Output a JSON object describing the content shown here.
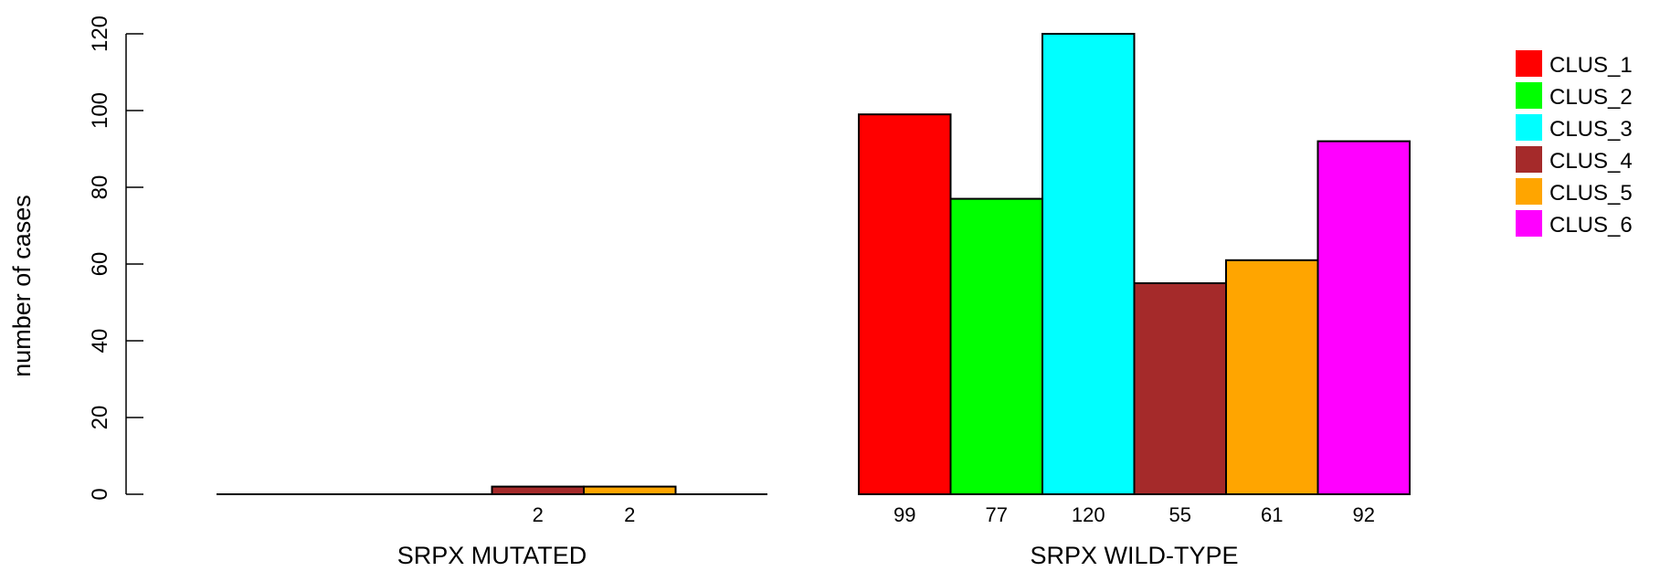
{
  "chart_data": {
    "type": "bar",
    "ylabel": "number of cases",
    "ylim": [
      0,
      120
    ],
    "yticks": [
      0,
      20,
      40,
      60,
      80,
      100,
      120
    ],
    "groups": [
      {
        "label": "SRPX MUTATED",
        "values": [
          0,
          0,
          0,
          2,
          2,
          0
        ],
        "labels": [
          "",
          "",
          "",
          "2",
          "2",
          ""
        ]
      },
      {
        "label": "SRPX WILD-TYPE",
        "values": [
          99,
          77,
          120,
          55,
          61,
          92
        ],
        "labels": [
          "99",
          "77",
          "120",
          "55",
          "61",
          "92"
        ]
      }
    ],
    "series": [
      {
        "name": "CLUS_1",
        "color": "#ff0000"
      },
      {
        "name": "CLUS_2",
        "color": "#00ff00"
      },
      {
        "name": "CLUS_3",
        "color": "#00ffff"
      },
      {
        "name": "CLUS_4",
        "color": "#a52a2a"
      },
      {
        "name": "CLUS_5",
        "color": "#ffa500"
      },
      {
        "name": "CLUS_6",
        "color": "#ff00ff"
      }
    ],
    "legend_position": "top-right",
    "grid": false
  }
}
